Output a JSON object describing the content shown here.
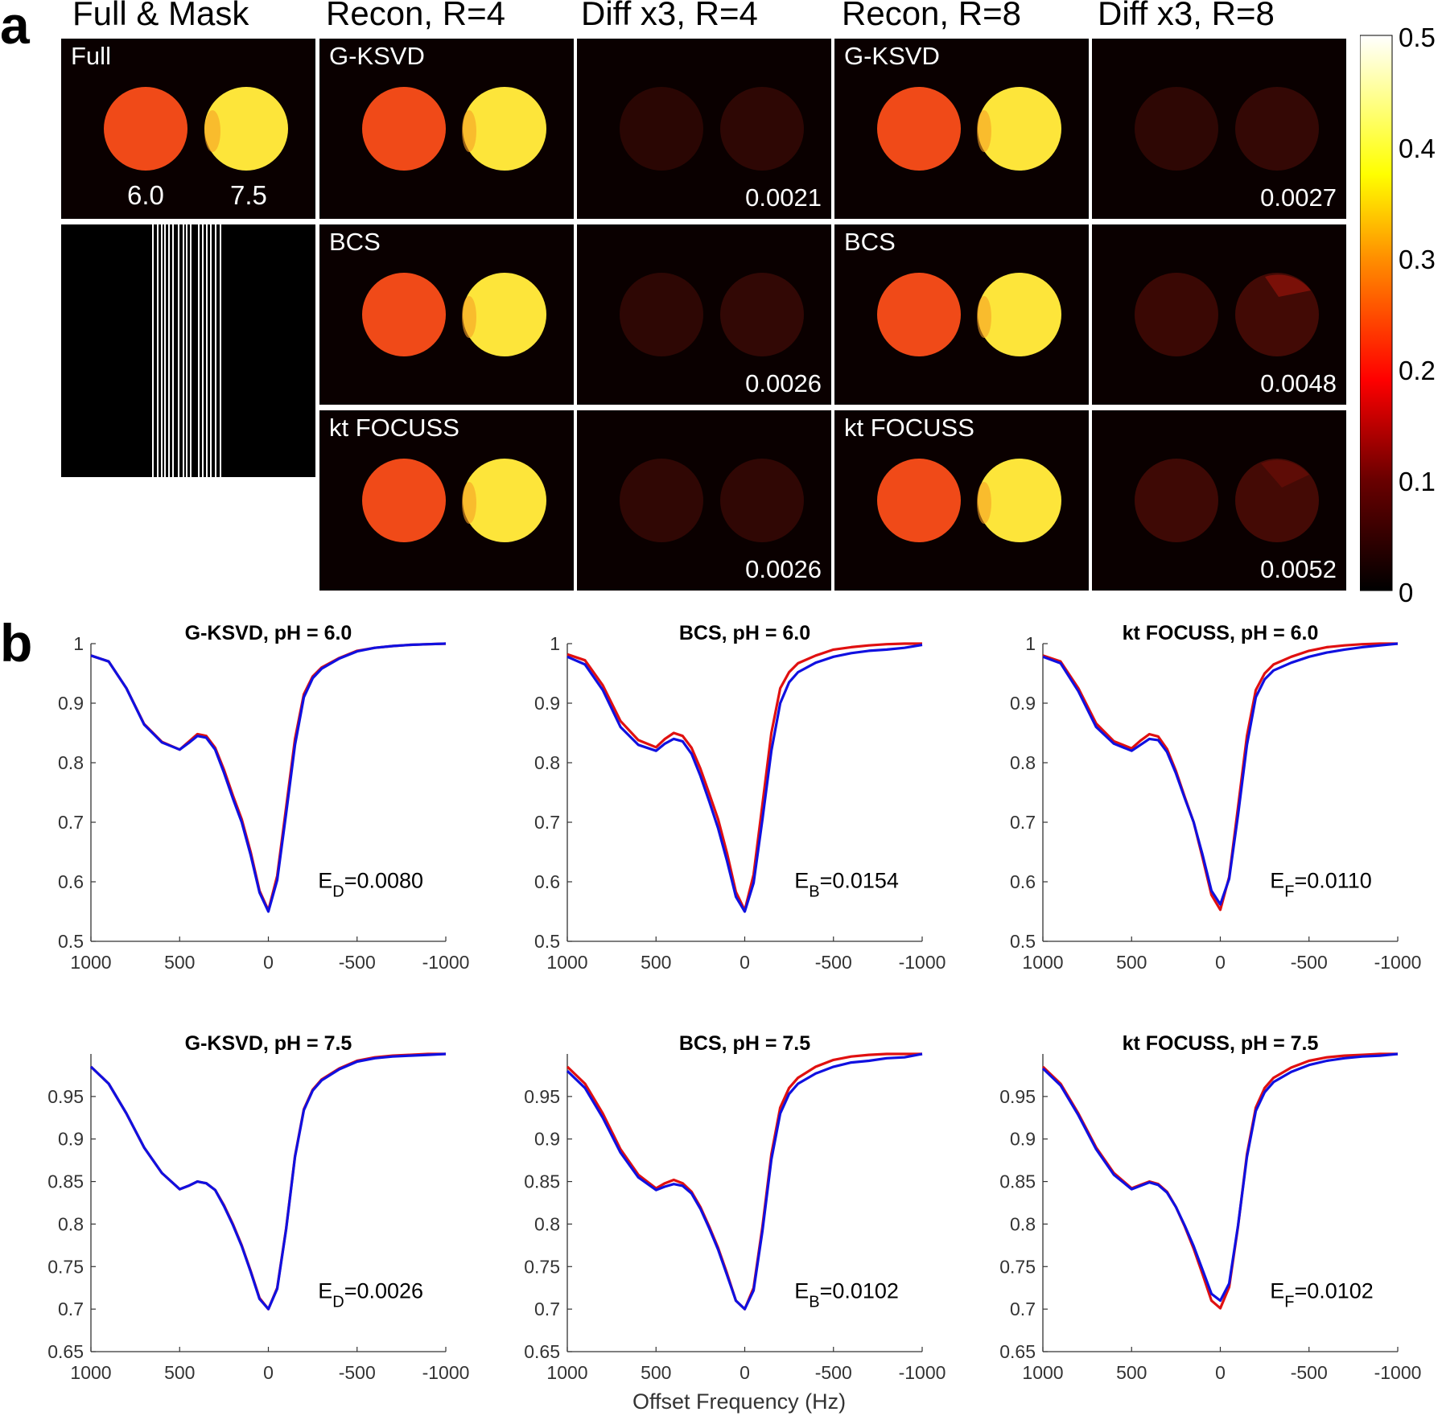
{
  "panel_a": {
    "letter": "a",
    "columns": [
      "Full & Mask",
      "Recon, R=4",
      "Diff x3, R=4",
      "Recon, R=8",
      "Diff x3, R=8"
    ],
    "full_tile": {
      "label": "Full",
      "ph_left": "6.0",
      "ph_right": "7.5"
    },
    "rows": [
      {
        "method": "G-KSVD",
        "err_r4": "0.0021",
        "err_r8": "0.0027"
      },
      {
        "method": "BCS",
        "err_r4": "0.0026",
        "err_r8": "0.0048"
      },
      {
        "method": "kt FOCUSS",
        "err_r4": "0.0026",
        "err_r8": "0.0052"
      }
    ],
    "colorbar": {
      "ticks": [
        "0.5",
        "0.4",
        "0.3",
        "0.2",
        "0.1",
        "0"
      ],
      "range": [
        0,
        0.5
      ]
    },
    "colors": {
      "low_phantom": "#f04a18",
      "high_phantom": "#fde53a",
      "background": "#0a0000",
      "diff": "#3a0804"
    }
  },
  "panel_b": {
    "letter": "b",
    "xlabel": "Offset Frequency (Hz)",
    "colors": {
      "reference": "#e01010",
      "reconstruction": "#1010e0"
    }
  },
  "chart_data": [
    {
      "type": "line",
      "title": "G-KSVD, pH = 6.0",
      "annotation_main": "E",
      "annotation_sub": "D",
      "annotation_value": "=0.0080",
      "xlim": [
        1000,
        -1000
      ],
      "ylim": [
        0.5,
        1
      ],
      "yticks": [
        0.5,
        0.6,
        0.7,
        0.8,
        0.9,
        1
      ],
      "ytick_labels": [
        "0.5",
        "0.6",
        "0.7",
        "0.8",
        "0.9",
        "1"
      ],
      "xticks": [
        1000,
        500,
        0,
        -500,
        -1000
      ],
      "xtick_labels": [
        "1000",
        "500",
        "0",
        "-500",
        "-1000"
      ],
      "series": [
        {
          "name": "reference",
          "x": [
            1000,
            900,
            800,
            700,
            600,
            500,
            450,
            400,
            350,
            300,
            250,
            200,
            150,
            100,
            50,
            0,
            -50,
            -100,
            -150,
            -200,
            -250,
            -300,
            -400,
            -500,
            -600,
            -700,
            -800,
            -900,
            -1000
          ],
          "y": [
            0.98,
            0.97,
            0.925,
            0.865,
            0.835,
            0.822,
            0.835,
            0.848,
            0.845,
            0.825,
            0.788,
            0.745,
            0.705,
            0.65,
            0.585,
            0.552,
            0.61,
            0.725,
            0.84,
            0.915,
            0.945,
            0.96,
            0.976,
            0.988,
            0.993,
            0.996,
            0.998,
            0.999,
            1.0
          ]
        },
        {
          "name": "reconstruction",
          "x": [
            1000,
            900,
            800,
            700,
            600,
            500,
            450,
            400,
            350,
            300,
            250,
            200,
            150,
            100,
            50,
            0,
            -50,
            -100,
            -150,
            -200,
            -250,
            -300,
            -400,
            -500,
            -600,
            -700,
            -800,
            -900,
            -1000
          ],
          "y": [
            0.98,
            0.97,
            0.925,
            0.864,
            0.834,
            0.822,
            0.833,
            0.845,
            0.842,
            0.822,
            0.783,
            0.74,
            0.7,
            0.645,
            0.582,
            0.55,
            0.603,
            0.715,
            0.83,
            0.91,
            0.942,
            0.958,
            0.975,
            0.987,
            0.993,
            0.996,
            0.998,
            0.999,
            1.0
          ]
        }
      ]
    },
    {
      "type": "line",
      "title": "BCS, pH = 6.0",
      "annotation_main": "E",
      "annotation_sub": "B",
      "annotation_value": "=0.0154",
      "xlim": [
        1000,
        -1000
      ],
      "ylim": [
        0.5,
        1
      ],
      "yticks": [
        0.5,
        0.6,
        0.7,
        0.8,
        0.9,
        1
      ],
      "ytick_labels": [
        "0.5",
        "0.6",
        "0.7",
        "0.8",
        "0.9",
        "1"
      ],
      "xticks": [
        1000,
        500,
        0,
        -500,
        -1000
      ],
      "xtick_labels": [
        "1000",
        "500",
        "0",
        "-500",
        "-1000"
      ],
      "series": [
        {
          "name": "reference",
          "x": [
            1000,
            900,
            800,
            700,
            600,
            500,
            450,
            400,
            350,
            300,
            250,
            200,
            150,
            100,
            50,
            0,
            -50,
            -100,
            -150,
            -200,
            -250,
            -300,
            -400,
            -500,
            -600,
            -700,
            -800,
            -900,
            -1000
          ],
          "y": [
            0.982,
            0.972,
            0.93,
            0.87,
            0.838,
            0.826,
            0.84,
            0.85,
            0.845,
            0.825,
            0.79,
            0.748,
            0.705,
            0.648,
            0.583,
            0.552,
            0.612,
            0.73,
            0.85,
            0.925,
            0.952,
            0.967,
            0.98,
            0.99,
            0.994,
            0.997,
            0.999,
            1.0,
            1.0
          ]
        },
        {
          "name": "reconstruction",
          "x": [
            1000,
            900,
            800,
            700,
            600,
            500,
            450,
            400,
            350,
            300,
            250,
            200,
            150,
            100,
            50,
            0,
            -50,
            -100,
            -150,
            -200,
            -250,
            -300,
            -400,
            -500,
            -600,
            -700,
            -800,
            -900,
            -1000
          ],
          "y": [
            0.978,
            0.965,
            0.922,
            0.86,
            0.83,
            0.82,
            0.832,
            0.84,
            0.836,
            0.815,
            0.778,
            0.735,
            0.69,
            0.635,
            0.575,
            0.55,
            0.598,
            0.705,
            0.82,
            0.9,
            0.935,
            0.952,
            0.968,
            0.978,
            0.984,
            0.988,
            0.99,
            0.993,
            0.998
          ]
        }
      ]
    },
    {
      "type": "line",
      "title": "kt FOCUSS, pH = 6.0",
      "annotation_main": "E",
      "annotation_sub": "F",
      "annotation_value": "=0.0110",
      "xlim": [
        1000,
        -1000
      ],
      "ylim": [
        0.5,
        1
      ],
      "yticks": [
        0.5,
        0.6,
        0.7,
        0.8,
        0.9,
        1
      ],
      "ytick_labels": [
        "0.5",
        "0.6",
        "0.7",
        "0.8",
        "0.9",
        "1"
      ],
      "xticks": [
        1000,
        500,
        0,
        -500,
        -1000
      ],
      "xtick_labels": [
        "1000",
        "500",
        "0",
        "-500",
        "-1000"
      ],
      "series": [
        {
          "name": "reference",
          "x": [
            1000,
            900,
            800,
            700,
            600,
            500,
            450,
            400,
            350,
            300,
            250,
            200,
            150,
            100,
            50,
            0,
            -50,
            -100,
            -150,
            -200,
            -250,
            -300,
            -400,
            -500,
            -600,
            -700,
            -800,
            -900,
            -1000
          ],
          "y": [
            0.98,
            0.97,
            0.925,
            0.866,
            0.836,
            0.824,
            0.837,
            0.848,
            0.844,
            0.823,
            0.786,
            0.742,
            0.7,
            0.64,
            0.578,
            0.553,
            0.608,
            0.725,
            0.845,
            0.922,
            0.95,
            0.965,
            0.978,
            0.988,
            0.994,
            0.997,
            0.999,
            1.0,
            1.0
          ]
        },
        {
          "name": "reconstruction",
          "x": [
            1000,
            900,
            800,
            700,
            600,
            500,
            450,
            400,
            350,
            300,
            250,
            200,
            150,
            100,
            50,
            0,
            -50,
            -100,
            -150,
            -200,
            -250,
            -300,
            -400,
            -500,
            -600,
            -700,
            -800,
            -900,
            -1000
          ],
          "y": [
            0.978,
            0.967,
            0.92,
            0.86,
            0.832,
            0.82,
            0.83,
            0.84,
            0.838,
            0.818,
            0.782,
            0.74,
            0.7,
            0.645,
            0.585,
            0.562,
            0.605,
            0.712,
            0.83,
            0.91,
            0.94,
            0.955,
            0.968,
            0.978,
            0.985,
            0.99,
            0.994,
            0.997,
            1.0
          ]
        }
      ]
    },
    {
      "type": "line",
      "title": "G-KSVD, pH = 7.5",
      "annotation_main": "E",
      "annotation_sub": "D",
      "annotation_value": "=0.0026",
      "xlim": [
        1000,
        -1000
      ],
      "ylim": [
        0.65,
        1
      ],
      "yticks": [
        0.65,
        0.7,
        0.75,
        0.8,
        0.85,
        0.9,
        0.95
      ],
      "ytick_labels": [
        "0.65",
        "0.7",
        "0.75",
        "0.8",
        "0.85",
        "0.9",
        "0.95"
      ],
      "xticks": [
        1000,
        500,
        0,
        -500,
        -1000
      ],
      "xtick_labels": [
        "1000",
        "500",
        "0",
        "-500",
        "-1000"
      ],
      "series": [
        {
          "name": "reference",
          "x": [
            1000,
            900,
            800,
            700,
            600,
            500,
            450,
            400,
            350,
            300,
            250,
            200,
            150,
            100,
            50,
            0,
            -50,
            -100,
            -150,
            -200,
            -250,
            -300,
            -400,
            -500,
            -600,
            -700,
            -800,
            -900,
            -1000
          ],
          "y": [
            0.985,
            0.965,
            0.93,
            0.89,
            0.86,
            0.841,
            0.845,
            0.85,
            0.848,
            0.84,
            0.822,
            0.8,
            0.775,
            0.745,
            0.713,
            0.7,
            0.725,
            0.795,
            0.88,
            0.935,
            0.958,
            0.97,
            0.983,
            0.992,
            0.996,
            0.998,
            0.999,
            1.0,
            1.0
          ]
        },
        {
          "name": "reconstruction",
          "x": [
            1000,
            900,
            800,
            700,
            600,
            500,
            450,
            400,
            350,
            300,
            250,
            200,
            150,
            100,
            50,
            0,
            -50,
            -100,
            -150,
            -200,
            -250,
            -300,
            -400,
            -500,
            -600,
            -700,
            -800,
            -900,
            -1000
          ],
          "y": [
            0.985,
            0.965,
            0.93,
            0.89,
            0.86,
            0.841,
            0.845,
            0.85,
            0.848,
            0.84,
            0.821,
            0.799,
            0.774,
            0.744,
            0.712,
            0.7,
            0.724,
            0.794,
            0.879,
            0.934,
            0.957,
            0.969,
            0.982,
            0.991,
            0.995,
            0.997,
            0.998,
            0.999,
            1.0
          ]
        }
      ]
    },
    {
      "type": "line",
      "title": "BCS, pH = 7.5",
      "annotation_main": "E",
      "annotation_sub": "B",
      "annotation_value": "=0.0102",
      "xlim": [
        1000,
        -1000
      ],
      "ylim": [
        0.65,
        1
      ],
      "yticks": [
        0.65,
        0.7,
        0.75,
        0.8,
        0.85,
        0.9,
        0.95
      ],
      "ytick_labels": [
        "0.65",
        "0.7",
        "0.75",
        "0.8",
        "0.85",
        "0.9",
        "0.95"
      ],
      "xticks": [
        1000,
        500,
        0,
        -500,
        -1000
      ],
      "xtick_labels": [
        "1000",
        "500",
        "0",
        "-500",
        "-1000"
      ],
      "series": [
        {
          "name": "reference",
          "x": [
            1000,
            900,
            800,
            700,
            600,
            500,
            450,
            400,
            350,
            300,
            250,
            200,
            150,
            100,
            50,
            0,
            -50,
            -100,
            -150,
            -200,
            -250,
            -300,
            -400,
            -500,
            -600,
            -700,
            -800,
            -900,
            -1000
          ],
          "y": [
            0.985,
            0.965,
            0.93,
            0.888,
            0.858,
            0.842,
            0.848,
            0.852,
            0.848,
            0.838,
            0.82,
            0.797,
            0.772,
            0.742,
            0.71,
            0.7,
            0.725,
            0.797,
            0.882,
            0.937,
            0.96,
            0.972,
            0.985,
            0.993,
            0.997,
            0.999,
            1.0,
            1.0,
            1.0
          ]
        },
        {
          "name": "reconstruction",
          "x": [
            1000,
            900,
            800,
            700,
            600,
            500,
            450,
            400,
            350,
            300,
            250,
            200,
            150,
            100,
            50,
            0,
            -50,
            -100,
            -150,
            -200,
            -250,
            -300,
            -400,
            -500,
            -600,
            -700,
            -800,
            -900,
            -1000
          ],
          "y": [
            0.98,
            0.96,
            0.925,
            0.884,
            0.855,
            0.84,
            0.844,
            0.847,
            0.845,
            0.836,
            0.818,
            0.795,
            0.77,
            0.74,
            0.71,
            0.7,
            0.722,
            0.792,
            0.876,
            0.93,
            0.953,
            0.965,
            0.977,
            0.985,
            0.99,
            0.992,
            0.995,
            0.996,
            1.0
          ]
        }
      ]
    },
    {
      "type": "line",
      "title": "kt FOCUSS, pH = 7.5",
      "annotation_main": "E",
      "annotation_sub": "F",
      "annotation_value": "=0.0102",
      "xlim": [
        1000,
        -1000
      ],
      "ylim": [
        0.65,
        1
      ],
      "yticks": [
        0.65,
        0.7,
        0.75,
        0.8,
        0.85,
        0.9,
        0.95
      ],
      "ytick_labels": [
        "0.65",
        "0.7",
        "0.75",
        "0.8",
        "0.85",
        "0.9",
        "0.95"
      ],
      "xticks": [
        1000,
        500,
        0,
        -500,
        -1000
      ],
      "xtick_labels": [
        "1000",
        "500",
        "0",
        "-500",
        "-1000"
      ],
      "series": [
        {
          "name": "reference",
          "x": [
            1000,
            900,
            800,
            700,
            600,
            500,
            450,
            400,
            350,
            300,
            250,
            200,
            150,
            100,
            50,
            0,
            -50,
            -100,
            -150,
            -200,
            -250,
            -300,
            -400,
            -500,
            -600,
            -700,
            -800,
            -900,
            -1000
          ],
          "y": [
            0.985,
            0.965,
            0.93,
            0.89,
            0.86,
            0.842,
            0.846,
            0.85,
            0.847,
            0.838,
            0.82,
            0.797,
            0.771,
            0.741,
            0.71,
            0.701,
            0.726,
            0.797,
            0.882,
            0.937,
            0.96,
            0.972,
            0.984,
            0.992,
            0.996,
            0.998,
            0.999,
            1.0,
            1.0
          ]
        },
        {
          "name": "reconstruction",
          "x": [
            1000,
            900,
            800,
            700,
            600,
            500,
            450,
            400,
            350,
            300,
            250,
            200,
            150,
            100,
            50,
            0,
            -50,
            -100,
            -150,
            -200,
            -250,
            -300,
            -400,
            -500,
            -600,
            -700,
            -800,
            -900,
            -1000
          ],
          "y": [
            0.983,
            0.963,
            0.928,
            0.888,
            0.858,
            0.841,
            0.845,
            0.849,
            0.846,
            0.837,
            0.82,
            0.798,
            0.774,
            0.746,
            0.718,
            0.71,
            0.73,
            0.798,
            0.879,
            0.933,
            0.955,
            0.967,
            0.979,
            0.987,
            0.992,
            0.995,
            0.997,
            0.998,
            1.0
          ]
        }
      ]
    }
  ]
}
